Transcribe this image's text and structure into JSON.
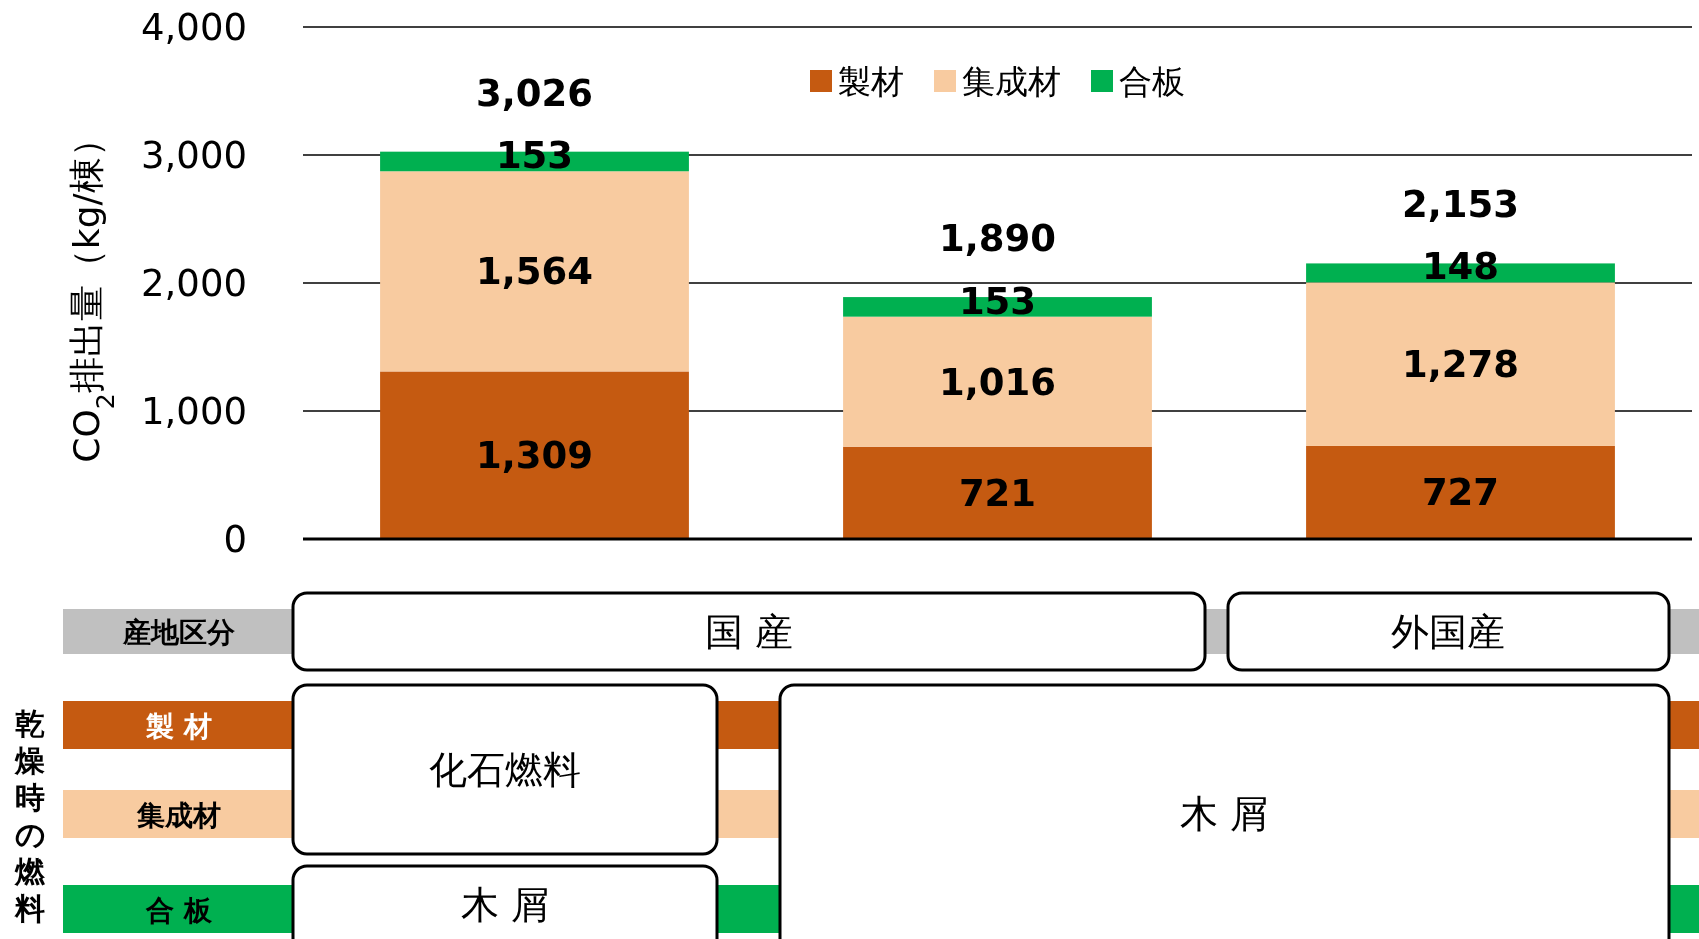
{
  "chart_data": {
    "type": "bar",
    "stacked": true,
    "ylabel": "CO$_{2}$排出量（kg/棟）",
    "categories": [
      null,
      null,
      null
    ],
    "series": [
      {
        "name": "製材",
        "color": "#c55a11",
        "values": [
          1309,
          721,
          727
        ],
        "value_labels": [
          "1,309",
          "721",
          "727"
        ]
      },
      {
        "name": "集成材",
        "color": "#f8cba0",
        "values": [
          1564,
          1016,
          1278
        ],
        "value_labels": [
          "1,564",
          "1,016",
          "1,278"
        ]
      },
      {
        "name": "合板",
        "color": "#00b050",
        "values": [
          153,
          153,
          148
        ],
        "value_labels": [
          "153",
          "153",
          "148"
        ]
      }
    ],
    "totals": [
      "3,026",
      "1,890",
      "2,153"
    ],
    "ylim": [
      0,
      4000
    ],
    "yticks": [
      0,
      {
        "value": 1000,
        "label": "1,000"
      },
      {
        "value": 2000,
        "label": "2,000"
      },
      {
        "value": 3000,
        "label": "3,000"
      },
      {
        "value": 4000,
        "label": "4,000"
      }
    ],
    "grid": "y",
    "legend": "top",
    "annotations": [
      "産地区分",
      "国 産",
      "外国産",
      "乾燥時の燃料",
      "製 材",
      "集成材",
      "合 板",
      "化石燃料",
      "木 屑",
      "木 屑"
    ]
  }
}
